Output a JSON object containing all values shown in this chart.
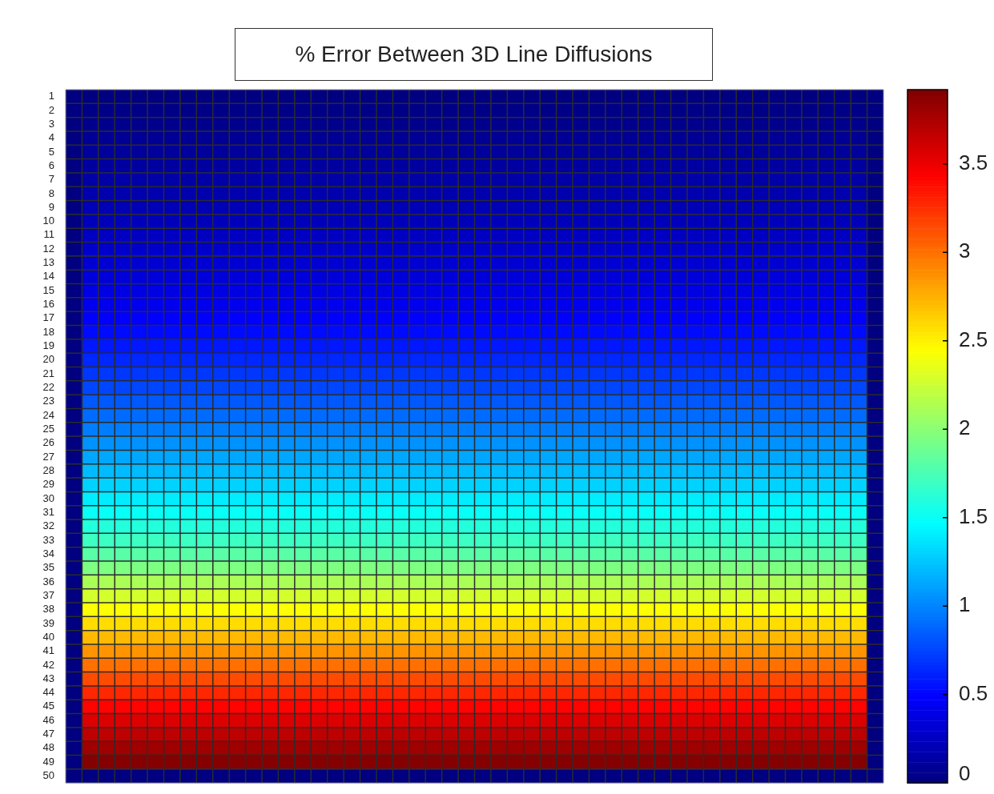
{
  "chart_data": {
    "type": "heatmap",
    "title": "% Error Between 3D Line Diffusions",
    "categories": [
      null,
      null,
      null,
      null,
      null,
      null,
      null,
      null,
      null,
      null,
      null,
      null,
      null,
      null,
      null,
      null,
      null,
      null,
      null,
      null,
      null,
      null,
      null,
      null,
      null,
      null,
      null,
      null,
      null,
      null,
      null,
      null,
      null,
      null,
      null,
      null,
      null,
      null,
      null,
      null,
      null,
      null,
      null,
      null,
      null,
      null,
      null,
      null,
      null,
      null
    ],
    "y_categories": [
      "1",
      "2",
      "3",
      "4",
      "5",
      "6",
      "7",
      "8",
      "9",
      "10",
      "11",
      "12",
      "13",
      "14",
      "15",
      "16",
      "17",
      "18",
      "19",
      "20",
      "21",
      "22",
      "23",
      "24",
      "25",
      "26",
      "27",
      "28",
      "29",
      "30",
      "31",
      "32",
      "33",
      "34",
      "35",
      "36",
      "37",
      "38",
      "39",
      "40",
      "41",
      "42",
      "43",
      "44",
      "45",
      "46",
      "47",
      "48",
      "49",
      "50"
    ],
    "tick_labels": "y",
    "grid": true,
    "clim": [
      0,
      3.92
    ],
    "cticks": [
      0,
      0.5,
      1,
      1.5,
      2,
      2.5,
      3,
      3.5
    ],
    "cells": [
      [
        0,
        0,
        0,
        0,
        0,
        0,
        0,
        0,
        0,
        0,
        0,
        0,
        0,
        0,
        0,
        0,
        0,
        0,
        0,
        0,
        0,
        0,
        0,
        0,
        0,
        0,
        0,
        0,
        0,
        0,
        0,
        0,
        0,
        0,
        0,
        0,
        0,
        0,
        0,
        0,
        0,
        0,
        0,
        0,
        0,
        0,
        0,
        0,
        0,
        0
      ],
      [
        0,
        0.03,
        0.03,
        0.03,
        0.03,
        0.03,
        0.03,
        0.03,
        0.03,
        0.03,
        0.03,
        0.03,
        0.03,
        0.03,
        0.03,
        0.03,
        0.03,
        0.03,
        0.03,
        0.03,
        0.03,
        0.03,
        0.03,
        0.03,
        0.03,
        0.03,
        0.03,
        0.03,
        0.03,
        0.03,
        0.03,
        0.03,
        0.03,
        0.03,
        0.03,
        0.03,
        0.03,
        0.03,
        0.03,
        0.03,
        0.03,
        0.03,
        0.03,
        0.03,
        0.03,
        0.03,
        0.03,
        0.03,
        0.03,
        0
      ],
      [
        0,
        0.05,
        0.05,
        0.05,
        0.05,
        0.05,
        0.05,
        0.05,
        0.05,
        0.05,
        0.05,
        0.05,
        0.05,
        0.05,
        0.05,
        0.05,
        0.05,
        0.05,
        0.05,
        0.05,
        0.05,
        0.05,
        0.05,
        0.05,
        0.05,
        0.05,
        0.05,
        0.05,
        0.05,
        0.05,
        0.05,
        0.05,
        0.05,
        0.05,
        0.05,
        0.05,
        0.05,
        0.05,
        0.05,
        0.05,
        0.05,
        0.05,
        0.05,
        0.05,
        0.05,
        0.05,
        0.05,
        0.05,
        0.05,
        0
      ],
      [
        0,
        0.08,
        0.08,
        0.08,
        0.08,
        0.08,
        0.08,
        0.08,
        0.08,
        0.08,
        0.08,
        0.08,
        0.08,
        0.08,
        0.08,
        0.08,
        0.08,
        0.08,
        0.08,
        0.08,
        0.08,
        0.08,
        0.08,
        0.08,
        0.08,
        0.08,
        0.08,
        0.08,
        0.08,
        0.08,
        0.08,
        0.08,
        0.08,
        0.08,
        0.08,
        0.08,
        0.08,
        0.08,
        0.08,
        0.08,
        0.08,
        0.08,
        0.08,
        0.08,
        0.08,
        0.08,
        0.08,
        0.08,
        0.08,
        0
      ],
      [
        0,
        0.1,
        0.1,
        0.1,
        0.1,
        0.1,
        0.1,
        0.1,
        0.1,
        0.1,
        0.1,
        0.1,
        0.1,
        0.1,
        0.1,
        0.1,
        0.1,
        0.1,
        0.1,
        0.1,
        0.1,
        0.1,
        0.1,
        0.1,
        0.1,
        0.1,
        0.1,
        0.1,
        0.1,
        0.1,
        0.1,
        0.1,
        0.1,
        0.1,
        0.1,
        0.1,
        0.1,
        0.1,
        0.1,
        0.1,
        0.1,
        0.1,
        0.1,
        0.1,
        0.1,
        0.1,
        0.1,
        0.1,
        0.1,
        0
      ],
      [
        0,
        0.13,
        0.13,
        0.13,
        0.13,
        0.13,
        0.13,
        0.13,
        0.13,
        0.13,
        0.13,
        0.13,
        0.13,
        0.13,
        0.13,
        0.13,
        0.13,
        0.13,
        0.13,
        0.13,
        0.13,
        0.13,
        0.13,
        0.13,
        0.13,
        0.13,
        0.13,
        0.13,
        0.13,
        0.13,
        0.13,
        0.13,
        0.13,
        0.13,
        0.13,
        0.13,
        0.13,
        0.13,
        0.13,
        0.13,
        0.13,
        0.13,
        0.13,
        0.13,
        0.13,
        0.13,
        0.13,
        0.13,
        0.13,
        0
      ],
      [
        0,
        0.15,
        0.15,
        0.15,
        0.15,
        0.15,
        0.15,
        0.15,
        0.15,
        0.15,
        0.15,
        0.15,
        0.15,
        0.15,
        0.15,
        0.15,
        0.15,
        0.15,
        0.15,
        0.15,
        0.15,
        0.15,
        0.15,
        0.15,
        0.15,
        0.15,
        0.15,
        0.15,
        0.15,
        0.15,
        0.15,
        0.15,
        0.15,
        0.15,
        0.15,
        0.15,
        0.15,
        0.15,
        0.15,
        0.15,
        0.15,
        0.15,
        0.15,
        0.15,
        0.15,
        0.15,
        0.15,
        0.15,
        0.15,
        0
      ],
      [
        0,
        0.18,
        0.18,
        0.18,
        0.18,
        0.18,
        0.18,
        0.18,
        0.18,
        0.18,
        0.18,
        0.18,
        0.18,
        0.18,
        0.18,
        0.18,
        0.18,
        0.18,
        0.18,
        0.18,
        0.18,
        0.18,
        0.18,
        0.18,
        0.18,
        0.18,
        0.18,
        0.18,
        0.18,
        0.18,
        0.18,
        0.18,
        0.18,
        0.18,
        0.18,
        0.18,
        0.18,
        0.18,
        0.18,
        0.18,
        0.18,
        0.18,
        0.18,
        0.18,
        0.18,
        0.18,
        0.18,
        0.18,
        0.18,
        0
      ],
      [
        0,
        0.2,
        0.2,
        0.2,
        0.2,
        0.2,
        0.2,
        0.2,
        0.2,
        0.2,
        0.2,
        0.2,
        0.2,
        0.2,
        0.2,
        0.2,
        0.2,
        0.2,
        0.2,
        0.2,
        0.2,
        0.2,
        0.2,
        0.2,
        0.2,
        0.2,
        0.2,
        0.2,
        0.2,
        0.2,
        0.2,
        0.2,
        0.2,
        0.2,
        0.2,
        0.2,
        0.2,
        0.2,
        0.2,
        0.2,
        0.2,
        0.2,
        0.2,
        0.2,
        0.2,
        0.2,
        0.2,
        0.2,
        0.2,
        0
      ],
      [
        0,
        0.23,
        0.23,
        0.23,
        0.23,
        0.23,
        0.23,
        0.23,
        0.23,
        0.23,
        0.23,
        0.23,
        0.23,
        0.23,
        0.23,
        0.23,
        0.23,
        0.23,
        0.23,
        0.23,
        0.23,
        0.23,
        0.23,
        0.23,
        0.23,
        0.23,
        0.23,
        0.23,
        0.23,
        0.23,
        0.23,
        0.23,
        0.23,
        0.23,
        0.23,
        0.23,
        0.23,
        0.23,
        0.23,
        0.23,
        0.23,
        0.23,
        0.23,
        0.23,
        0.23,
        0.23,
        0.23,
        0.23,
        0.23,
        0
      ],
      [
        0,
        0.26,
        0.26,
        0.26,
        0.26,
        0.26,
        0.26,
        0.26,
        0.26,
        0.26,
        0.26,
        0.26,
        0.26,
        0.26,
        0.26,
        0.26,
        0.26,
        0.26,
        0.26,
        0.26,
        0.26,
        0.26,
        0.26,
        0.26,
        0.26,
        0.26,
        0.26,
        0.26,
        0.26,
        0.26,
        0.26,
        0.26,
        0.26,
        0.26,
        0.26,
        0.26,
        0.26,
        0.26,
        0.26,
        0.26,
        0.26,
        0.26,
        0.26,
        0.26,
        0.26,
        0.26,
        0.26,
        0.26,
        0.26,
        0
      ],
      [
        0,
        0.29,
        0.29,
        0.29,
        0.29,
        0.29,
        0.29,
        0.29,
        0.29,
        0.29,
        0.29,
        0.29,
        0.29,
        0.29,
        0.29,
        0.29,
        0.29,
        0.29,
        0.29,
        0.29,
        0.29,
        0.29,
        0.29,
        0.29,
        0.29,
        0.29,
        0.29,
        0.29,
        0.29,
        0.29,
        0.29,
        0.29,
        0.29,
        0.29,
        0.29,
        0.29,
        0.29,
        0.29,
        0.29,
        0.29,
        0.29,
        0.29,
        0.29,
        0.29,
        0.29,
        0.29,
        0.29,
        0.29,
        0.29,
        0
      ],
      [
        0,
        0.32,
        0.32,
        0.32,
        0.32,
        0.32,
        0.32,
        0.32,
        0.32,
        0.32,
        0.32,
        0.32,
        0.32,
        0.32,
        0.32,
        0.32,
        0.32,
        0.32,
        0.32,
        0.32,
        0.32,
        0.32,
        0.32,
        0.32,
        0.32,
        0.32,
        0.32,
        0.32,
        0.32,
        0.32,
        0.32,
        0.32,
        0.32,
        0.32,
        0.32,
        0.32,
        0.32,
        0.32,
        0.32,
        0.32,
        0.32,
        0.32,
        0.32,
        0.32,
        0.32,
        0.32,
        0.32,
        0.32,
        0.32,
        0
      ],
      [
        0,
        0.35,
        0.35,
        0.35,
        0.35,
        0.35,
        0.35,
        0.35,
        0.35,
        0.35,
        0.35,
        0.35,
        0.35,
        0.35,
        0.35,
        0.35,
        0.35,
        0.35,
        0.35,
        0.35,
        0.35,
        0.35,
        0.35,
        0.35,
        0.35,
        0.35,
        0.35,
        0.35,
        0.35,
        0.35,
        0.35,
        0.35,
        0.35,
        0.35,
        0.35,
        0.35,
        0.35,
        0.35,
        0.35,
        0.35,
        0.35,
        0.35,
        0.35,
        0.35,
        0.35,
        0.35,
        0.35,
        0.35,
        0.35,
        0
      ],
      [
        0,
        0.39,
        0.39,
        0.39,
        0.39,
        0.39,
        0.39,
        0.39,
        0.39,
        0.39,
        0.39,
        0.39,
        0.39,
        0.39,
        0.39,
        0.39,
        0.39,
        0.39,
        0.39,
        0.39,
        0.39,
        0.39,
        0.39,
        0.39,
        0.39,
        0.39,
        0.39,
        0.39,
        0.39,
        0.39,
        0.39,
        0.39,
        0.39,
        0.39,
        0.39,
        0.39,
        0.39,
        0.39,
        0.39,
        0.39,
        0.39,
        0.39,
        0.39,
        0.39,
        0.39,
        0.39,
        0.39,
        0.39,
        0.39,
        0
      ],
      [
        0,
        0.43,
        0.43,
        0.43,
        0.43,
        0.43,
        0.43,
        0.43,
        0.43,
        0.43,
        0.43,
        0.43,
        0.43,
        0.43,
        0.43,
        0.43,
        0.43,
        0.43,
        0.43,
        0.43,
        0.43,
        0.43,
        0.43,
        0.43,
        0.43,
        0.43,
        0.43,
        0.43,
        0.43,
        0.43,
        0.43,
        0.43,
        0.43,
        0.43,
        0.43,
        0.43,
        0.43,
        0.43,
        0.43,
        0.43,
        0.43,
        0.43,
        0.43,
        0.43,
        0.43,
        0.43,
        0.43,
        0.43,
        0.43,
        0
      ],
      [
        0,
        0.48,
        0.48,
        0.48,
        0.48,
        0.48,
        0.48,
        0.48,
        0.48,
        0.48,
        0.48,
        0.48,
        0.48,
        0.48,
        0.48,
        0.48,
        0.48,
        0.48,
        0.48,
        0.48,
        0.48,
        0.48,
        0.48,
        0.48,
        0.48,
        0.48,
        0.48,
        0.48,
        0.48,
        0.48,
        0.48,
        0.48,
        0.48,
        0.48,
        0.48,
        0.48,
        0.48,
        0.48,
        0.48,
        0.48,
        0.48,
        0.48,
        0.48,
        0.48,
        0.48,
        0.48,
        0.48,
        0.48,
        0.48,
        0
      ],
      [
        0,
        0.53,
        0.53,
        0.53,
        0.53,
        0.53,
        0.53,
        0.53,
        0.53,
        0.53,
        0.53,
        0.53,
        0.53,
        0.53,
        0.53,
        0.53,
        0.53,
        0.53,
        0.53,
        0.53,
        0.53,
        0.53,
        0.53,
        0.53,
        0.53,
        0.53,
        0.53,
        0.53,
        0.53,
        0.53,
        0.53,
        0.53,
        0.53,
        0.53,
        0.53,
        0.53,
        0.53,
        0.53,
        0.53,
        0.53,
        0.53,
        0.53,
        0.53,
        0.53,
        0.53,
        0.53,
        0.53,
        0.53,
        0.53,
        0
      ],
      [
        0,
        0.58,
        0.58,
        0.58,
        0.58,
        0.58,
        0.58,
        0.58,
        0.58,
        0.58,
        0.58,
        0.58,
        0.58,
        0.58,
        0.58,
        0.58,
        0.58,
        0.58,
        0.58,
        0.58,
        0.58,
        0.58,
        0.58,
        0.58,
        0.58,
        0.58,
        0.58,
        0.58,
        0.58,
        0.58,
        0.58,
        0.58,
        0.58,
        0.58,
        0.58,
        0.58,
        0.58,
        0.58,
        0.58,
        0.58,
        0.58,
        0.58,
        0.58,
        0.58,
        0.58,
        0.58,
        0.58,
        0.58,
        0.58,
        0
      ],
      [
        0,
        0.64,
        0.64,
        0.64,
        0.64,
        0.64,
        0.64,
        0.64,
        0.64,
        0.64,
        0.64,
        0.64,
        0.64,
        0.64,
        0.64,
        0.64,
        0.64,
        0.64,
        0.64,
        0.64,
        0.64,
        0.64,
        0.64,
        0.64,
        0.64,
        0.64,
        0.64,
        0.64,
        0.64,
        0.64,
        0.64,
        0.64,
        0.64,
        0.64,
        0.64,
        0.64,
        0.64,
        0.64,
        0.64,
        0.64,
        0.64,
        0.64,
        0.64,
        0.64,
        0.64,
        0.64,
        0.64,
        0.64,
        0.64,
        0
      ],
      [
        0,
        0.7,
        0.7,
        0.7,
        0.7,
        0.7,
        0.7,
        0.7,
        0.7,
        0.7,
        0.7,
        0.7,
        0.7,
        0.7,
        0.7,
        0.7,
        0.7,
        0.7,
        0.7,
        0.7,
        0.7,
        0.7,
        0.7,
        0.7,
        0.7,
        0.7,
        0.7,
        0.7,
        0.7,
        0.7,
        0.7,
        0.7,
        0.7,
        0.7,
        0.7,
        0.7,
        0.7,
        0.7,
        0.7,
        0.7,
        0.7,
        0.7,
        0.7,
        0.7,
        0.7,
        0.7,
        0.7,
        0.7,
        0.7,
        0
      ],
      [
        0,
        0.76,
        0.76,
        0.76,
        0.76,
        0.76,
        0.76,
        0.76,
        0.76,
        0.76,
        0.76,
        0.76,
        0.76,
        0.76,
        0.76,
        0.76,
        0.76,
        0.76,
        0.76,
        0.76,
        0.76,
        0.76,
        0.76,
        0.76,
        0.76,
        0.76,
        0.76,
        0.76,
        0.76,
        0.76,
        0.76,
        0.76,
        0.76,
        0.76,
        0.76,
        0.76,
        0.76,
        0.76,
        0.76,
        0.76,
        0.76,
        0.76,
        0.76,
        0.76,
        0.76,
        0.76,
        0.76,
        0.76,
        0.76,
        0
      ],
      [
        0,
        0.83,
        0.83,
        0.83,
        0.83,
        0.83,
        0.83,
        0.83,
        0.83,
        0.83,
        0.83,
        0.83,
        0.83,
        0.83,
        0.83,
        0.83,
        0.83,
        0.83,
        0.83,
        0.83,
        0.83,
        0.83,
        0.83,
        0.83,
        0.83,
        0.83,
        0.83,
        0.83,
        0.83,
        0.83,
        0.83,
        0.83,
        0.83,
        0.83,
        0.83,
        0.83,
        0.83,
        0.83,
        0.83,
        0.83,
        0.83,
        0.83,
        0.83,
        0.83,
        0.83,
        0.83,
        0.83,
        0.83,
        0.83,
        0
      ],
      [
        0,
        0.9,
        0.9,
        0.9,
        0.9,
        0.9,
        0.9,
        0.9,
        0.9,
        0.9,
        0.9,
        0.9,
        0.9,
        0.9,
        0.9,
        0.9,
        0.9,
        0.9,
        0.9,
        0.9,
        0.9,
        0.9,
        0.9,
        0.9,
        0.9,
        0.9,
        0.9,
        0.9,
        0.9,
        0.9,
        0.9,
        0.9,
        0.9,
        0.9,
        0.9,
        0.9,
        0.9,
        0.9,
        0.9,
        0.9,
        0.9,
        0.9,
        0.9,
        0.9,
        0.9,
        0.9,
        0.9,
        0.9,
        0.9,
        0
      ],
      [
        0,
        0.97,
        0.97,
        0.97,
        0.97,
        0.97,
        0.97,
        0.97,
        0.97,
        0.97,
        0.97,
        0.97,
        0.97,
        0.97,
        0.97,
        0.97,
        0.97,
        0.97,
        0.97,
        0.97,
        0.97,
        0.97,
        0.97,
        0.97,
        0.97,
        0.97,
        0.97,
        0.97,
        0.97,
        0.97,
        0.97,
        0.97,
        0.97,
        0.97,
        0.97,
        0.97,
        0.97,
        0.97,
        0.97,
        0.97,
        0.97,
        0.97,
        0.97,
        0.97,
        0.97,
        0.97,
        0.97,
        0.97,
        0.97,
        0
      ],
      [
        0,
        1.05,
        1.05,
        1.05,
        1.05,
        1.05,
        1.05,
        1.05,
        1.05,
        1.05,
        1.05,
        1.05,
        1.05,
        1.05,
        1.05,
        1.05,
        1.05,
        1.05,
        1.05,
        1.05,
        1.05,
        1.05,
        1.05,
        1.05,
        1.05,
        1.05,
        1.05,
        1.05,
        1.05,
        1.05,
        1.05,
        1.05,
        1.05,
        1.05,
        1.05,
        1.05,
        1.05,
        1.05,
        1.05,
        1.05,
        1.05,
        1.05,
        1.05,
        1.05,
        1.05,
        1.05,
        1.05,
        1.05,
        1.05,
        0
      ],
      [
        0,
        1.13,
        1.13,
        1.13,
        1.13,
        1.13,
        1.13,
        1.13,
        1.13,
        1.13,
        1.13,
        1.13,
        1.13,
        1.13,
        1.13,
        1.13,
        1.13,
        1.13,
        1.13,
        1.13,
        1.13,
        1.13,
        1.13,
        1.13,
        1.13,
        1.13,
        1.13,
        1.13,
        1.13,
        1.13,
        1.13,
        1.13,
        1.13,
        1.13,
        1.13,
        1.13,
        1.13,
        1.13,
        1.13,
        1.13,
        1.13,
        1.13,
        1.13,
        1.13,
        1.13,
        1.13,
        1.13,
        1.13,
        1.13,
        0
      ],
      [
        0,
        1.21,
        1.21,
        1.21,
        1.21,
        1.21,
        1.21,
        1.21,
        1.21,
        1.21,
        1.21,
        1.21,
        1.21,
        1.21,
        1.21,
        1.21,
        1.21,
        1.21,
        1.21,
        1.21,
        1.21,
        1.21,
        1.21,
        1.21,
        1.21,
        1.21,
        1.21,
        1.21,
        1.21,
        1.21,
        1.21,
        1.21,
        1.21,
        1.21,
        1.21,
        1.21,
        1.21,
        1.21,
        1.21,
        1.21,
        1.21,
        1.21,
        1.21,
        1.21,
        1.21,
        1.21,
        1.21,
        1.21,
        1.21,
        0
      ],
      [
        0,
        1.3,
        1.3,
        1.3,
        1.3,
        1.3,
        1.3,
        1.3,
        1.3,
        1.3,
        1.3,
        1.3,
        1.3,
        1.3,
        1.3,
        1.3,
        1.3,
        1.3,
        1.3,
        1.3,
        1.3,
        1.3,
        1.3,
        1.3,
        1.3,
        1.3,
        1.3,
        1.3,
        1.3,
        1.3,
        1.3,
        1.3,
        1.3,
        1.3,
        1.3,
        1.3,
        1.3,
        1.3,
        1.3,
        1.3,
        1.3,
        1.3,
        1.3,
        1.3,
        1.3,
        1.3,
        1.3,
        1.3,
        1.3,
        0
      ],
      [
        0,
        1.4,
        1.4,
        1.4,
        1.4,
        1.4,
        1.4,
        1.4,
        1.4,
        1.4,
        1.4,
        1.4,
        1.4,
        1.4,
        1.4,
        1.4,
        1.4,
        1.4,
        1.4,
        1.4,
        1.4,
        1.4,
        1.4,
        1.4,
        1.4,
        1.4,
        1.4,
        1.4,
        1.4,
        1.4,
        1.4,
        1.4,
        1.4,
        1.4,
        1.4,
        1.4,
        1.4,
        1.4,
        1.4,
        1.4,
        1.4,
        1.4,
        1.4,
        1.4,
        1.4,
        1.4,
        1.4,
        1.4,
        1.4,
        0
      ],
      [
        0,
        1.5,
        1.5,
        1.5,
        1.5,
        1.5,
        1.5,
        1.5,
        1.5,
        1.5,
        1.5,
        1.5,
        1.5,
        1.5,
        1.5,
        1.5,
        1.5,
        1.5,
        1.5,
        1.5,
        1.5,
        1.5,
        1.5,
        1.5,
        1.5,
        1.5,
        1.5,
        1.5,
        1.5,
        1.5,
        1.5,
        1.5,
        1.5,
        1.5,
        1.5,
        1.5,
        1.5,
        1.5,
        1.5,
        1.5,
        1.5,
        1.5,
        1.5,
        1.5,
        1.5,
        1.5,
        1.5,
        1.5,
        1.5,
        0
      ],
      [
        0,
        1.6,
        1.6,
        1.6,
        1.6,
        1.6,
        1.6,
        1.6,
        1.6,
        1.6,
        1.6,
        1.6,
        1.6,
        1.6,
        1.6,
        1.6,
        1.6,
        1.6,
        1.6,
        1.6,
        1.6,
        1.6,
        1.6,
        1.6,
        1.6,
        1.6,
        1.6,
        1.6,
        1.6,
        1.6,
        1.6,
        1.6,
        1.6,
        1.6,
        1.6,
        1.6,
        1.6,
        1.6,
        1.6,
        1.6,
        1.6,
        1.6,
        1.6,
        1.6,
        1.6,
        1.6,
        1.6,
        1.6,
        1.6,
        0
      ],
      [
        0,
        1.7,
        1.7,
        1.7,
        1.7,
        1.7,
        1.7,
        1.7,
        1.7,
        1.7,
        1.7,
        1.7,
        1.7,
        1.7,
        1.7,
        1.7,
        1.7,
        1.7,
        1.7,
        1.7,
        1.7,
        1.7,
        1.7,
        1.7,
        1.7,
        1.7,
        1.7,
        1.7,
        1.7,
        1.7,
        1.7,
        1.7,
        1.7,
        1.7,
        1.7,
        1.7,
        1.7,
        1.7,
        1.7,
        1.7,
        1.7,
        1.7,
        1.7,
        1.7,
        1.7,
        1.7,
        1.7,
        1.7,
        1.7,
        0
      ],
      [
        0,
        1.81,
        1.81,
        1.81,
        1.81,
        1.81,
        1.81,
        1.81,
        1.81,
        1.81,
        1.81,
        1.81,
        1.81,
        1.81,
        1.81,
        1.81,
        1.81,
        1.81,
        1.81,
        1.81,
        1.81,
        1.81,
        1.81,
        1.81,
        1.81,
        1.81,
        1.81,
        1.81,
        1.81,
        1.81,
        1.81,
        1.81,
        1.81,
        1.81,
        1.81,
        1.81,
        1.81,
        1.81,
        1.81,
        1.81,
        1.81,
        1.81,
        1.81,
        1.81,
        1.81,
        1.81,
        1.81,
        1.81,
        1.81,
        0
      ],
      [
        0,
        1.95,
        1.95,
        1.95,
        1.95,
        1.95,
        1.95,
        1.95,
        1.95,
        1.95,
        1.95,
        1.95,
        1.95,
        1.95,
        1.95,
        1.95,
        1.95,
        1.95,
        1.95,
        1.95,
        1.95,
        1.95,
        1.95,
        1.95,
        1.95,
        1.95,
        1.95,
        1.95,
        1.95,
        1.95,
        1.95,
        1.95,
        1.95,
        1.95,
        1.95,
        1.95,
        1.95,
        1.95,
        1.95,
        1.95,
        1.95,
        1.95,
        1.95,
        1.95,
        1.95,
        1.95,
        1.95,
        1.95,
        1.95,
        0
      ],
      [
        0,
        2.12,
        2.12,
        2.12,
        2.12,
        2.12,
        2.12,
        2.12,
        2.12,
        2.12,
        2.12,
        2.12,
        2.12,
        2.12,
        2.12,
        2.12,
        2.12,
        2.12,
        2.12,
        2.12,
        2.12,
        2.12,
        2.12,
        2.12,
        2.12,
        2.12,
        2.12,
        2.12,
        2.12,
        2.12,
        2.12,
        2.12,
        2.12,
        2.12,
        2.12,
        2.12,
        2.12,
        2.12,
        2.12,
        2.12,
        2.12,
        2.12,
        2.12,
        2.12,
        2.12,
        2.12,
        2.12,
        2.12,
        2.12,
        0
      ],
      [
        0,
        2.28,
        2.28,
        2.28,
        2.28,
        2.28,
        2.28,
        2.28,
        2.28,
        2.28,
        2.28,
        2.28,
        2.28,
        2.28,
        2.28,
        2.28,
        2.28,
        2.28,
        2.28,
        2.28,
        2.28,
        2.28,
        2.28,
        2.28,
        2.28,
        2.28,
        2.28,
        2.28,
        2.28,
        2.28,
        2.28,
        2.28,
        2.28,
        2.28,
        2.28,
        2.28,
        2.28,
        2.28,
        2.28,
        2.28,
        2.28,
        2.28,
        2.28,
        2.28,
        2.28,
        2.28,
        2.28,
        2.28,
        2.28,
        0
      ],
      [
        0,
        2.44,
        2.44,
        2.44,
        2.44,
        2.44,
        2.44,
        2.44,
        2.44,
        2.44,
        2.44,
        2.44,
        2.44,
        2.44,
        2.44,
        2.44,
        2.44,
        2.44,
        2.44,
        2.44,
        2.44,
        2.44,
        2.44,
        2.44,
        2.44,
        2.44,
        2.44,
        2.44,
        2.44,
        2.44,
        2.44,
        2.44,
        2.44,
        2.44,
        2.44,
        2.44,
        2.44,
        2.44,
        2.44,
        2.44,
        2.44,
        2.44,
        2.44,
        2.44,
        2.44,
        2.44,
        2.44,
        2.44,
        2.44,
        0
      ],
      [
        0,
        2.58,
        2.58,
        2.58,
        2.58,
        2.58,
        2.58,
        2.58,
        2.58,
        2.58,
        2.58,
        2.58,
        2.58,
        2.58,
        2.58,
        2.58,
        2.58,
        2.58,
        2.58,
        2.58,
        2.58,
        2.58,
        2.58,
        2.58,
        2.58,
        2.58,
        2.58,
        2.58,
        2.58,
        2.58,
        2.58,
        2.58,
        2.58,
        2.58,
        2.58,
        2.58,
        2.58,
        2.58,
        2.58,
        2.58,
        2.58,
        2.58,
        2.58,
        2.58,
        2.58,
        2.58,
        2.58,
        2.58,
        2.58,
        0
      ],
      [
        0,
        2.72,
        2.72,
        2.72,
        2.72,
        2.72,
        2.72,
        2.72,
        2.72,
        2.72,
        2.72,
        2.72,
        2.72,
        2.72,
        2.72,
        2.72,
        2.72,
        2.72,
        2.72,
        2.72,
        2.72,
        2.72,
        2.72,
        2.72,
        2.72,
        2.72,
        2.72,
        2.72,
        2.72,
        2.72,
        2.72,
        2.72,
        2.72,
        2.72,
        2.72,
        2.72,
        2.72,
        2.72,
        2.72,
        2.72,
        2.72,
        2.72,
        2.72,
        2.72,
        2.72,
        2.72,
        2.72,
        2.72,
        2.72,
        0
      ],
      [
        0,
        2.86,
        2.86,
        2.86,
        2.86,
        2.86,
        2.86,
        2.86,
        2.86,
        2.86,
        2.86,
        2.86,
        2.86,
        2.86,
        2.86,
        2.86,
        2.86,
        2.86,
        2.86,
        2.86,
        2.86,
        2.86,
        2.86,
        2.86,
        2.86,
        2.86,
        2.86,
        2.86,
        2.86,
        2.86,
        2.86,
        2.86,
        2.86,
        2.86,
        2.86,
        2.86,
        2.86,
        2.86,
        2.86,
        2.86,
        2.86,
        2.86,
        2.86,
        2.86,
        2.86,
        2.86,
        2.86,
        2.86,
        2.86,
        0
      ],
      [
        0,
        3.0,
        3.0,
        3.0,
        3.0,
        3.0,
        3.0,
        3.0,
        3.0,
        3.0,
        3.0,
        3.0,
        3.0,
        3.0,
        3.0,
        3.0,
        3.0,
        3.0,
        3.0,
        3.0,
        3.0,
        3.0,
        3.0,
        3.0,
        3.0,
        3.0,
        3.0,
        3.0,
        3.0,
        3.0,
        3.0,
        3.0,
        3.0,
        3.0,
        3.0,
        3.0,
        3.0,
        3.0,
        3.0,
        3.0,
        3.0,
        3.0,
        3.0,
        3.0,
        3.0,
        3.0,
        3.0,
        3.0,
        3.0,
        0
      ],
      [
        0,
        3.14,
        3.14,
        3.14,
        3.14,
        3.14,
        3.14,
        3.14,
        3.14,
        3.14,
        3.14,
        3.14,
        3.14,
        3.14,
        3.14,
        3.14,
        3.14,
        3.14,
        3.14,
        3.14,
        3.14,
        3.14,
        3.14,
        3.14,
        3.14,
        3.14,
        3.14,
        3.14,
        3.14,
        3.14,
        3.14,
        3.14,
        3.14,
        3.14,
        3.14,
        3.14,
        3.14,
        3.14,
        3.14,
        3.14,
        3.14,
        3.14,
        3.14,
        3.14,
        3.14,
        3.14,
        3.14,
        3.14,
        3.14,
        0
      ],
      [
        0,
        3.28,
        3.28,
        3.28,
        3.28,
        3.28,
        3.28,
        3.28,
        3.28,
        3.28,
        3.28,
        3.28,
        3.28,
        3.28,
        3.28,
        3.28,
        3.28,
        3.28,
        3.28,
        3.28,
        3.28,
        3.28,
        3.28,
        3.28,
        3.28,
        3.28,
        3.28,
        3.28,
        3.28,
        3.28,
        3.28,
        3.28,
        3.28,
        3.28,
        3.28,
        3.28,
        3.28,
        3.28,
        3.28,
        3.28,
        3.28,
        3.28,
        3.28,
        3.28,
        3.28,
        3.28,
        3.28,
        3.28,
        3.28,
        0
      ],
      [
        0,
        3.42,
        3.42,
        3.42,
        3.42,
        3.42,
        3.42,
        3.42,
        3.42,
        3.42,
        3.42,
        3.42,
        3.42,
        3.42,
        3.42,
        3.42,
        3.42,
        3.42,
        3.42,
        3.42,
        3.42,
        3.42,
        3.42,
        3.42,
        3.42,
        3.42,
        3.42,
        3.42,
        3.42,
        3.42,
        3.42,
        3.42,
        3.42,
        3.42,
        3.42,
        3.42,
        3.42,
        3.42,
        3.42,
        3.42,
        3.42,
        3.42,
        3.42,
        3.42,
        3.42,
        3.42,
        3.42,
        3.42,
        3.42,
        0
      ],
      [
        0,
        3.56,
        3.56,
        3.56,
        3.56,
        3.56,
        3.56,
        3.56,
        3.56,
        3.56,
        3.56,
        3.56,
        3.56,
        3.56,
        3.56,
        3.56,
        3.56,
        3.56,
        3.56,
        3.56,
        3.56,
        3.56,
        3.56,
        3.56,
        3.56,
        3.56,
        3.56,
        3.56,
        3.56,
        3.56,
        3.56,
        3.56,
        3.56,
        3.56,
        3.56,
        3.56,
        3.56,
        3.56,
        3.56,
        3.56,
        3.56,
        3.56,
        3.56,
        3.56,
        3.56,
        3.56,
        3.56,
        3.56,
        3.56,
        0
      ],
      [
        0,
        3.68,
        3.68,
        3.68,
        3.68,
        3.68,
        3.68,
        3.68,
        3.68,
        3.68,
        3.68,
        3.68,
        3.68,
        3.68,
        3.68,
        3.68,
        3.68,
        3.68,
        3.68,
        3.68,
        3.68,
        3.68,
        3.68,
        3.68,
        3.68,
        3.68,
        3.68,
        3.68,
        3.68,
        3.68,
        3.68,
        3.68,
        3.68,
        3.68,
        3.68,
        3.68,
        3.68,
        3.68,
        3.68,
        3.68,
        3.68,
        3.68,
        3.68,
        3.68,
        3.68,
        3.68,
        3.68,
        3.68,
        3.68,
        0
      ],
      [
        0,
        3.8,
        3.8,
        3.8,
        3.8,
        3.8,
        3.8,
        3.8,
        3.8,
        3.8,
        3.8,
        3.8,
        3.8,
        3.8,
        3.8,
        3.8,
        3.8,
        3.8,
        3.8,
        3.8,
        3.8,
        3.8,
        3.8,
        3.8,
        3.8,
        3.8,
        3.8,
        3.8,
        3.8,
        3.8,
        3.8,
        3.8,
        3.8,
        3.8,
        3.8,
        3.8,
        3.8,
        3.8,
        3.8,
        3.8,
        3.8,
        3.8,
        3.8,
        3.8,
        3.8,
        3.8,
        3.8,
        3.8,
        3.8,
        0
      ],
      [
        0,
        3.9,
        3.9,
        3.9,
        3.9,
        3.9,
        3.9,
        3.9,
        3.9,
        3.9,
        3.9,
        3.9,
        3.9,
        3.9,
        3.9,
        3.9,
        3.9,
        3.9,
        3.9,
        3.9,
        3.9,
        3.9,
        3.9,
        3.9,
        3.9,
        3.9,
        3.9,
        3.9,
        3.9,
        3.9,
        3.9,
        3.9,
        3.9,
        3.9,
        3.9,
        3.9,
        3.9,
        3.9,
        3.9,
        3.9,
        3.9,
        3.9,
        3.9,
        3.9,
        3.9,
        3.9,
        3.9,
        3.9,
        3.9,
        0
      ],
      [
        0,
        0,
        0,
        0,
        0,
        0,
        0,
        0,
        0,
        0,
        0,
        0,
        0,
        0,
        0,
        0,
        0,
        0,
        0,
        0,
        0,
        0,
        0,
        0,
        0,
        0,
        0,
        0,
        0,
        0,
        0,
        0,
        0,
        0,
        0,
        0,
        0,
        0,
        0,
        0,
        0,
        0,
        0,
        0,
        0,
        0,
        0,
        0,
        0,
        0
      ]
    ]
  }
}
